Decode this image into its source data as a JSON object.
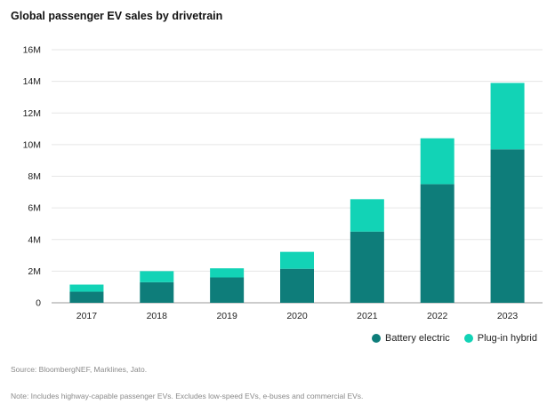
{
  "chart_data": {
    "type": "bar",
    "stacked": true,
    "title": "Global passenger EV sales by drivetrain",
    "xlabel": "",
    "ylabel": "",
    "categories": [
      "2017",
      "2018",
      "2019",
      "2020",
      "2021",
      "2022",
      "2023"
    ],
    "series": [
      {
        "name": "Battery electric",
        "color": "#0e7d7a",
        "values": [
          0.7,
          1.3,
          1.6,
          2.15,
          4.5,
          7.5,
          9.7
        ]
      },
      {
        "name": "Plug-in hybrid",
        "color": "#12d3b6",
        "values": [
          0.45,
          0.7,
          0.58,
          1.07,
          2.05,
          2.9,
          4.2
        ]
      }
    ],
    "ylim": [
      0,
      16
    ],
    "yticks": [
      0,
      2,
      4,
      6,
      8,
      10,
      12,
      14,
      16
    ],
    "ytick_labels": [
      "0",
      "2M",
      "4M",
      "6M",
      "8M",
      "10M",
      "12M",
      "14M",
      "16M"
    ],
    "grid": true,
    "legend": "bottom-right"
  },
  "source": "Source: BloombergNEF, Marklines, Jato.",
  "note": "Note: Includes highway-capable passenger EVs. Excludes low-speed EVs, e-buses and commercial EVs."
}
